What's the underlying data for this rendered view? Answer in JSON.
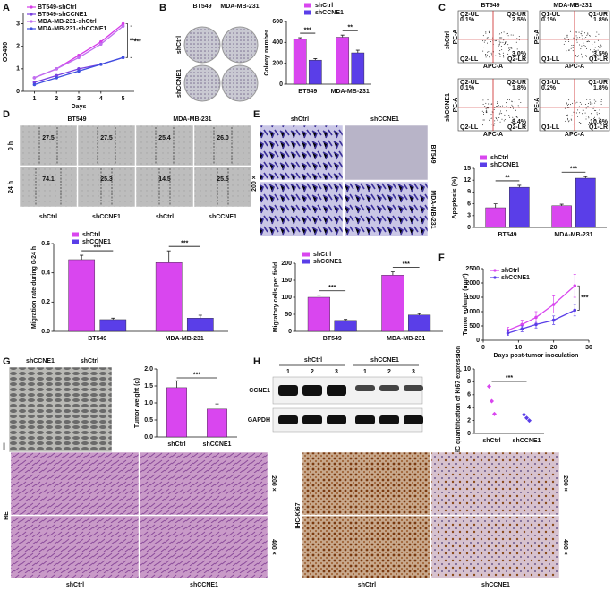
{
  "panels": {
    "A": {
      "label": "A",
      "chart": {
        "type": "line",
        "y_label": "OD450",
        "x_label": "Days",
        "x": [
          1,
          2,
          3,
          4,
          5
        ],
        "xlim": [
          0.5,
          5.5
        ],
        "xticks": [
          1,
          2,
          3,
          4,
          5
        ],
        "ylim": [
          0,
          3.5
        ],
        "yticks": [
          0,
          1,
          2,
          3
        ],
        "series": [
          {
            "name": "BT549-shCtrl",
            "color": "#d63ce8",
            "values": [
              0.6,
              1.0,
              1.6,
              2.2,
              3.0
            ]
          },
          {
            "name": "BT549-shCCNE1",
            "color": "#7a3fe0",
            "values": [
              0.4,
              0.7,
              1.0,
              1.2,
              1.5
            ]
          },
          {
            "name": "MDA-MB-231-shCtrl",
            "color": "#c070f0",
            "values": [
              0.6,
              1.0,
              1.5,
              2.1,
              2.9
            ]
          },
          {
            "name": "MDA-MB-231-shCCNE1",
            "color": "#3f4fe0",
            "values": [
              0.3,
              0.6,
              0.9,
              1.2,
              1.5
            ]
          }
        ],
        "significance": [
          "***",
          "***"
        ]
      }
    },
    "B": {
      "label": "B",
      "columns": [
        "BT549",
        "MDA-MB-231"
      ],
      "rows": [
        "shCtrl",
        "shCCNE1"
      ],
      "chart": {
        "type": "bar",
        "y_label": "Colony number",
        "categories": [
          "BT549",
          "MDA-MB-231"
        ],
        "ylim": [
          0,
          600
        ],
        "yticks": [
          0,
          200,
          400,
          600
        ],
        "series": [
          {
            "name": "shCtrl",
            "color": "#d946ef",
            "values": [
              430,
              450
            ],
            "errors": [
              15,
              20
            ]
          },
          {
            "name": "shCCNE1",
            "color": "#5a3ee8",
            "values": [
              230,
              300
            ],
            "errors": [
              15,
              25
            ]
          }
        ],
        "significance": [
          "***",
          "**"
        ]
      }
    },
    "C": {
      "label": "C",
      "columns": [
        "BT549",
        "MDA-MB-231"
      ],
      "rows": [
        "shCtrl",
        "shCCNE1"
      ],
      "x_label": "APC-A",
      "y_label": "PE-A",
      "plots": [
        [
          {
            "name": "Q2-UL",
            "value": "0.1%"
          },
          {
            "name": "Q2-UR",
            "value": "2.5%"
          },
          {
            "name": "Q2-LL"
          },
          {
            "name": "Q2-LR",
            "value": "3.0%"
          }
        ],
        [
          {
            "name": "Q1-UL",
            "value": "0.1%"
          },
          {
            "name": "Q1-UR",
            "value": "1.8%"
          },
          {
            "name": "Q1-LL"
          },
          {
            "name": "Q1-LR",
            "value": "3.5%"
          }
        ],
        [
          {
            "name": "Q2-UL",
            "value": "0.1%"
          },
          {
            "name": "Q2-UR",
            "value": "1.8%"
          },
          {
            "name": "Q2-LL"
          },
          {
            "name": "Q2-LR",
            "value": "8.4%"
          }
        ],
        [
          {
            "name": "Q1-UL",
            "value": "0.2%"
          },
          {
            "name": "Q1-UR",
            "value": "1.8%"
          },
          {
            "name": "Q1-LL"
          },
          {
            "name": "Q1-LR",
            "value": "10.6%"
          }
        ]
      ],
      "chart": {
        "type": "bar",
        "y_label": "Apoptosis (%)",
        "categories": [
          "BT549",
          "MDA-MB-231"
        ],
        "ylim": [
          0,
          15
        ],
        "yticks": [
          0,
          3,
          6,
          9,
          12,
          15
        ],
        "series": [
          {
            "name": "shCtrl",
            "color": "#d946ef",
            "values": [
              5.0,
              5.5
            ],
            "errors": [
              1.0,
              0.4
            ]
          },
          {
            "name": "shCCNE1",
            "color": "#5a3ee8",
            "values": [
              10.2,
              12.5
            ],
            "errors": [
              0.5,
              0.4
            ]
          }
        ],
        "significance": [
          "**",
          "***"
        ]
      }
    },
    "D": {
      "label": "D",
      "columns": [
        "BT549",
        "MDA-MB-231"
      ],
      "rows": [
        "0 h",
        "24 h"
      ],
      "lanes": [
        "shCtrl",
        "shCCNE1",
        "shCtrl",
        "shCCNE1"
      ],
      "widths": [
        [
          "27.5",
          "27.5",
          "25.4",
          "26.0"
        ],
        [
          "74.1",
          "25.3",
          "14.5",
          "25.5"
        ]
      ],
      "chart": {
        "type": "bar",
        "y_label": "Migration rate during 0-24 h",
        "categories": [
          "BT549",
          "MDA-MB-231"
        ],
        "ylim": [
          0,
          0.6
        ],
        "yticks": [
          {
            "value": 0,
            "label": "0.0"
          },
          0.2,
          0.4,
          0.6
        ],
        "series": [
          {
            "name": "shCtrl",
            "color": "#d946ef",
            "values": [
              0.49,
              0.47
            ],
            "errors": [
              0.03,
              0.08
            ]
          },
          {
            "name": "shCCNE1",
            "color": "#5a3ee8",
            "values": [
              0.08,
              0.09
            ],
            "errors": [
              0.01,
              0.02
            ]
          }
        ],
        "significance": [
          "***",
          "***"
        ]
      }
    },
    "E": {
      "label": "E",
      "columns": [
        "shCtrl",
        "shCCNE1"
      ],
      "rows": [
        "BT549",
        "MDA-MB-231"
      ],
      "magnification": "200 ×",
      "chart": {
        "type": "bar",
        "y_label": "Migratory cells per field",
        "categories": [
          "BT549",
          "MDA-MB-231"
        ],
        "ylim": [
          0,
          200
        ],
        "yticks": [
          0,
          50,
          100,
          150,
          200
        ],
        "series": [
          {
            "name": "shCtrl",
            "color": "#d946ef",
            "values": [
              100,
              165
            ],
            "errors": [
              6,
              10
            ]
          },
          {
            "name": "shCCNE1",
            "color": "#5a3ee8",
            "values": [
              32,
              48
            ],
            "errors": [
              3,
              4
            ]
          }
        ],
        "significance": [
          "***",
          "***"
        ]
      }
    },
    "F": {
      "label": "F",
      "chart": {
        "type": "line",
        "y_label": "Tumor volume (mm³)",
        "x_label": "Days post-tumor inoculation",
        "x": [
          7,
          11,
          15,
          20,
          26
        ],
        "xlim": [
          0,
          30
        ],
        "xticks": [
          0,
          10,
          20,
          30
        ],
        "ylim": [
          0,
          2500
        ],
        "yticks": [
          0,
          500,
          1000,
          1500,
          2000,
          2500
        ],
        "series": [
          {
            "name": "shCtrl",
            "color": "#d946ef",
            "values": [
              350,
              550,
              800,
              1250,
              1900
            ],
            "errors": [
              100,
              150,
              200,
              300,
              400
            ]
          },
          {
            "name": "shCCNE1",
            "color": "#5a3ee8",
            "values": [
              250,
              400,
              550,
              700,
              1050
            ],
            "errors": [
              80,
              100,
              120,
              150,
              200
            ]
          }
        ],
        "significance": [
          "***"
        ]
      }
    },
    "G": {
      "label": "G",
      "photo_labels": [
        "shCCNE1",
        "shCtrl"
      ],
      "chart": {
        "type": "bar",
        "y_label": "Tumor weight (g)",
        "categories": [
          "shCtrl",
          "shCCNE1"
        ],
        "ylim": [
          0,
          2.0
        ],
        "yticks": [
          {
            "value": 0,
            "label": "0.0"
          },
          0.5,
          {
            "value": 1,
            "label": "1.0"
          },
          1.5,
          {
            "value": 2,
            "label": "2.0"
          }
        ],
        "series": [
          {
            "color": "#d946ef",
            "values": [
              1.45,
              0.82
            ],
            "errors": [
              0.2,
              0.15
            ]
          }
        ],
        "significance": [
          "***"
        ]
      }
    },
    "H": {
      "label": "H",
      "groups": [
        "shCtrl",
        "shCCNE1"
      ],
      "lanes": [
        "1",
        "2",
        "3",
        "1",
        "2",
        "3"
      ],
      "proteins": [
        "CCNE1",
        "GAPDH"
      ],
      "chart": {
        "type": "dot",
        "y_label": "IHC quantification of Ki67 expression",
        "categories": [
          "shCtrl",
          "shCCNE1"
        ],
        "ylim": [
          0,
          10
        ],
        "yticks": [
          0,
          2,
          4,
          6,
          8,
          10
        ],
        "colors": [
          "#d946ef",
          "#5a3ee8"
        ],
        "values": [
          [
            7.3,
            5.0,
            3.0
          ],
          [
            2.9,
            2.4,
            2.0
          ]
        ],
        "significance": [
          "***"
        ]
      }
    },
    "I": {
      "label": "I",
      "stains": [
        "HE",
        "IHC-Ki67"
      ],
      "magnifications": [
        "200 ×",
        "400 ×"
      ],
      "groups": [
        "shCtrl",
        "shCCNE1"
      ]
    }
  }
}
